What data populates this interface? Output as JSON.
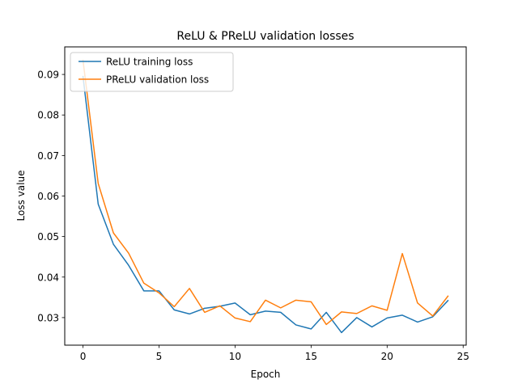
{
  "chart_data": {
    "type": "line",
    "title": "ReLU & PReLU validation losses",
    "xlabel": "Epoch",
    "ylabel": "Loss value",
    "xlim": [
      -1.2,
      25.2
    ],
    "ylim": [
      0.0232,
      0.0968
    ],
    "xticks": [
      0,
      5,
      10,
      15,
      20,
      25
    ],
    "yticks": [
      0.03,
      0.04,
      0.05,
      0.06,
      0.07,
      0.08,
      0.09
    ],
    "ytick_labels": [
      "0.03",
      "0.04",
      "0.05",
      "0.06",
      "0.07",
      "0.08",
      "0.09"
    ],
    "grid": false,
    "legend_position": "upper-left",
    "x": [
      0,
      1,
      2,
      3,
      4,
      5,
      6,
      7,
      8,
      9,
      10,
      11,
      12,
      13,
      14,
      15,
      16,
      17,
      18,
      19,
      20,
      21,
      22,
      23,
      24
    ],
    "series": [
      {
        "name": "ReLU training loss",
        "color": "#1f77b4",
        "values": [
          0.0895,
          0.058,
          0.0481,
          0.0429,
          0.0366,
          0.0366,
          0.0319,
          0.0309,
          0.0323,
          0.0328,
          0.0336,
          0.0307,
          0.0316,
          0.0313,
          0.0282,
          0.0272,
          0.0313,
          0.0263,
          0.03,
          0.0277,
          0.0299,
          0.0306,
          0.0289,
          0.0302,
          0.0342
        ]
      },
      {
        "name": "PReLU validation loss",
        "color": "#ff7f0e",
        "values": [
          0.0935,
          0.0631,
          0.0509,
          0.0459,
          0.0385,
          0.0361,
          0.0327,
          0.0372,
          0.0313,
          0.0329,
          0.0299,
          0.029,
          0.0343,
          0.0324,
          0.0343,
          0.0339,
          0.0283,
          0.0314,
          0.031,
          0.0329,
          0.0318,
          0.0458,
          0.0336,
          0.0304,
          0.0353
        ]
      }
    ]
  }
}
